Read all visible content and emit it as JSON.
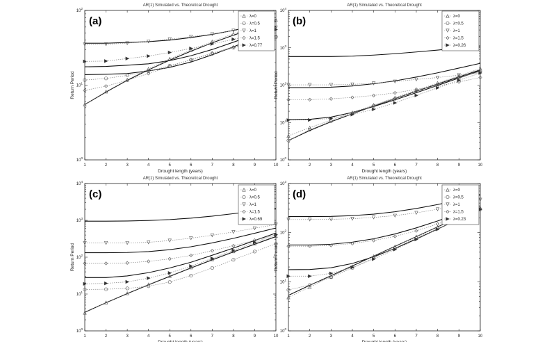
{
  "figure": {
    "xlabel": "Drought length (years)",
    "ylabel": "Return Period",
    "title": "AR(1) Simulated vs. Theoretical Drought"
  },
  "chart_data": [
    {
      "type": "line",
      "panel": "(a)",
      "title": "AR(1) Simulated vs. Theoretical Drought",
      "xlabel": "Drought length (years)",
      "ylabel": "Return Period",
      "x": [
        1,
        2,
        3,
        4,
        5,
        6,
        7,
        8,
        9,
        10
      ],
      "xlim": [
        1,
        10
      ],
      "ylim_exponents": [
        0,
        2
      ],
      "yscale": "log",
      "x_tick_labels": [
        "1",
        "2",
        "3",
        "4",
        "5",
        "6",
        "7",
        "8",
        "9",
        "10"
      ],
      "y_tick_labels": [
        {
          "base": "10",
          "exp": "0"
        },
        {
          "base": "10",
          "exp": "1"
        },
        {
          "base": "10",
          "exp": "2"
        }
      ],
      "series": [
        {
          "name": "λ=0",
          "marker": "triangle-up",
          "values": [
            5.5,
            8.2,
            11.8,
            16.5,
            22.5,
            29.6,
            38.3,
            48.6,
            60.7,
            74.8
          ]
        },
        {
          "name": "λ=0.5",
          "marker": "circle",
          "values": [
            11.7,
            12.3,
            13.5,
            15.3,
            18.2,
            21.8,
            26.3,
            31.6,
            37.6,
            43.9
          ]
        },
        {
          "name": "λ=1",
          "marker": "triangle-down",
          "values": [
            35.1,
            35.3,
            36.4,
            38.5,
            41.2,
            44.5,
            48.1,
            53.8,
            56.0,
            59.4
          ]
        },
        {
          "name": "λ=1.5",
          "marker": "diamond",
          "values": [
            8.5,
            9.7,
            11.6,
            14.3,
            17.8,
            22.0,
            26.9,
            32.3,
            38.5,
            45.2
          ]
        },
        {
          "name": "λ=0.77",
          "marker": "triangle-right",
          "values": [
            20.8,
            21.0,
            22.7,
            24.5,
            27.4,
            31.0,
            35.6,
            41.1,
            47.8,
            55.4
          ]
        }
      ],
      "theoretical_curves_top_to_bottom": [
        {
          "values": [
            36.4,
            36.4,
            37.3,
            38.2,
            40.1,
            43.3,
            47.8,
            54.0,
            62.8,
            74.8
          ]
        },
        {
          "values": [
            17.6,
            17.8,
            18.5,
            19.3,
            21.3,
            24.8,
            30.0,
            37.6,
            47.4,
            60.7
          ]
        },
        {
          "values": [
            13.8,
            14.0,
            14.3,
            15.5,
            17.3,
            20.4,
            25.5,
            32.6,
            42.3,
            55.4
          ]
        },
        {
          "values": [
            5.5,
            8.1,
            11.6,
            16.0,
            21.6,
            28.5,
            36.8,
            46.6,
            58.0,
            71.1
          ]
        }
      ]
    },
    {
      "type": "line",
      "panel": "(b)",
      "title": "AR(1) Simulated vs. Theoretical Drought",
      "xlabel": "Drought length (years)",
      "ylabel": "Return Period",
      "x": [
        1,
        2,
        3,
        4,
        5,
        6,
        7,
        8,
        9,
        10
      ],
      "xlim": [
        1,
        10
      ],
      "ylim_exponents": [
        0,
        4
      ],
      "yscale": "log",
      "x_tick_labels": [
        "1",
        "2",
        "3",
        "4",
        "5",
        "6",
        "7",
        "8",
        "9",
        "10"
      ],
      "y_tick_labels": [
        {
          "base": "10",
          "exp": "0"
        },
        {
          "base": "10",
          "exp": "1"
        },
        {
          "base": "10",
          "exp": "2"
        },
        {
          "base": "10",
          "exp": "3"
        },
        {
          "base": "10",
          "exp": "4"
        }
      ],
      "series": [
        {
          "name": "λ=0",
          "marker": "triangle-up",
          "values": [
            4.4,
            7.3,
            11.7,
            18.5,
            29.5,
            46.4,
            72.7,
            114,
            178,
            276
          ]
        },
        {
          "name": "λ=0.5",
          "marker": "circle",
          "values": [
            3.3,
            6.4,
            10.9,
            17.4,
            28.0,
            43.1,
            67.6,
            104,
            158,
            235
          ]
        },
        {
          "name": "λ=1",
          "marker": "triangle-down",
          "values": [
            102,
            102,
            102,
            105,
            112,
            125,
            142,
            160,
            185,
            215
          ]
        },
        {
          "name": "λ=1.5",
          "marker": "diamond",
          "values": [
            41,
            41,
            43,
            47,
            53,
            62,
            77,
            95,
            122,
            160
          ]
        },
        {
          "name": "λ=0.26",
          "marker": "triangle-right",
          "values": [
            11.6,
            11.7,
            12.9,
            16.3,
            22.6,
            33.6,
            53.2,
            84.6,
            135,
            212
          ]
        }
      ],
      "theoretical_curves_top_to_bottom": [
        {
          "values": [
            585,
            585,
            585,
            598,
            638,
            695,
            773,
            866,
            990,
            1120
          ]
        },
        {
          "values": [
            86,
            86,
            88,
            95,
            109,
            130,
            165,
            214,
            286,
            383
          ]
        },
        {
          "values": [
            12.0,
            12.2,
            14.0,
            18.6,
            26.8,
            40.4,
            62.7,
            98.5,
            155,
            244
          ]
        },
        {
          "values": [
            3.3,
            6.1,
            10.5,
            17.1,
            27.7,
            43.6,
            68.5,
            107,
            166,
            257
          ]
        }
      ]
    },
    {
      "type": "line",
      "panel": "(c)",
      "title": "AR(1) Simulated vs. Theoretical Drought",
      "xlabel": "Drought length (years)",
      "ylabel": "Return Period",
      "x": [
        1,
        2,
        3,
        4,
        5,
        6,
        7,
        8,
        9,
        10
      ],
      "xlim": [
        1,
        10
      ],
      "ylim_exponents": [
        0,
        4
      ],
      "yscale": "log",
      "x_tick_labels": [
        "1",
        "2",
        "3",
        "4",
        "5",
        "6",
        "7",
        "8",
        "9",
        "10"
      ],
      "y_tick_labels": [
        {
          "base": "10",
          "exp": "0"
        },
        {
          "base": "10",
          "exp": "1"
        },
        {
          "base": "10",
          "exp": "2"
        },
        {
          "base": "10",
          "exp": "3"
        },
        {
          "base": "10",
          "exp": "4"
        }
      ],
      "series": [
        {
          "name": "λ=0",
          "marker": "triangle-up",
          "values": [
            3.1,
            5.9,
            10.5,
            18.2,
            31.0,
            52.6,
            87.9,
            144,
            235,
            377
          ]
        },
        {
          "name": "λ=0.5",
          "marker": "circle",
          "values": [
            13.3,
            13.5,
            14.2,
            16.3,
            21.2,
            31.6,
            51.1,
            84.9,
            142,
            232
          ]
        },
        {
          "name": "λ=1",
          "marker": "triangle-down",
          "values": [
            243,
            243,
            243,
            253,
            283,
            328,
            393,
            485,
            610,
            770
          ]
        },
        {
          "name": "λ=1.5",
          "marker": "diamond",
          "values": [
            68,
            68,
            70,
            77,
            90,
            112,
            150,
            205,
            288,
            408
          ]
        },
        {
          "name": "λ=0.69",
          "marker": "triangle-right",
          "values": [
            18.9,
            19.5,
            21.4,
            27.0,
            37.3,
            57.4,
            93.0,
            154,
            253,
            408
          ]
        }
      ],
      "theoretical_curves_top_to_bottom": [
        {
          "values": [
            948,
            948,
            960,
            990,
            1050,
            1150,
            1300,
            1520,
            1790,
            2130
          ]
        },
        {
          "values": [
            132,
            132,
            134,
            142,
            160,
            192,
            244,
            325,
            447,
            620
          ]
        },
        {
          "values": [
            28,
            28,
            31,
            38,
            51,
            73,
            113,
            177,
            283,
            453
          ]
        },
        {
          "values": [
            3.2,
            5.8,
            10.3,
            17.8,
            30.2,
            50.9,
            84.6,
            139,
            225,
            362
          ]
        }
      ]
    },
    {
      "type": "line",
      "panel": "(d)",
      "title": "AR(1) Simulated vs. Theoretical Drought",
      "xlabel": "Drought length (years)",
      "ylabel": "Return Period",
      "x": [
        1,
        2,
        3,
        4,
        5,
        6,
        7,
        8,
        9,
        10
      ],
      "xlim": [
        1,
        10
      ],
      "ylim_exponents": [
        0,
        3
      ],
      "yscale": "log",
      "x_tick_labels": [
        "1",
        "2",
        "3",
        "4",
        "5",
        "6",
        "7",
        "8",
        "9",
        "10"
      ],
      "y_tick_labels": [
        {
          "base": "10",
          "exp": "0"
        },
        {
          "base": "10",
          "exp": "1"
        },
        {
          "base": "10",
          "exp": "2"
        },
        {
          "base": "10",
          "exp": "3"
        }
      ],
      "series": [
        {
          "name": "λ=0",
          "marker": "triangle-up",
          "values": [
            4.8,
            7.8,
            12.7,
            20.5,
            33.0,
            52.3,
            83.0,
            130,
            204,
            320
          ]
        },
        {
          "name": "λ=0.5",
          "marker": "circle",
          "values": [
            6.8,
            8.6,
            12.4,
            19.1,
            30.5,
            48.6,
            77.2,
            121,
            190,
            295
          ]
        },
        {
          "name": "λ=1",
          "marker": "triangle-down",
          "values": [
            185,
            185,
            187,
            192,
            204,
            222,
            253,
            299,
            367,
            471
          ]
        },
        {
          "name": "λ=1.5",
          "marker": "diamond",
          "values": [
            53,
            53,
            55,
            60,
            69,
            84,
            109,
            150,
            212,
            302
          ]
        },
        {
          "name": "λ=0.23",
          "marker": "triangle-right",
          "values": [
            13.0,
            13.0,
            14.8,
            19.6,
            28.9,
            45.3,
            72.7,
            117,
            188,
            297
          ]
        }
      ],
      "theoretical_curves_top_to_bottom": [
        {
          "values": [
            212,
            212,
            214,
            222,
            238,
            266,
            310,
            373,
            463,
            583
          ]
        },
        {
          "values": [
            56,
            56,
            58,
            64,
            75,
            94,
            125,
            173,
            246,
            352
          ]
        },
        {
          "values": [
            17.6,
            17.8,
            19.3,
            23.6,
            32.3,
            47.8,
            74.0,
            118,
            189,
            302
          ]
        },
        {
          "values": [
            5.3,
            8.5,
            13.3,
            21.0,
            33.2,
            52.6,
            83.0,
            131,
            206,
            321
          ]
        }
      ]
    }
  ]
}
